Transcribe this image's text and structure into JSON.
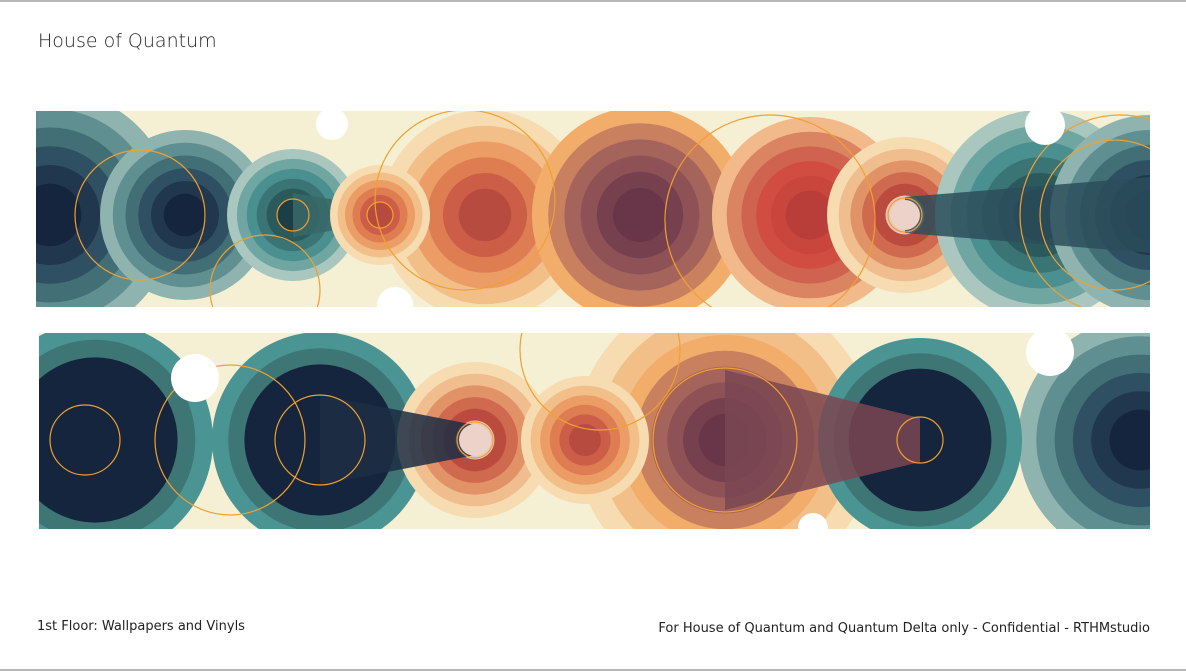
{
  "header": {
    "title": "House of Quantum"
  },
  "footer": {
    "left": "1st Floor: Wallpapers and Vinyls",
    "right": "For House of Quantum and Quantum Delta only - Confidential - RTHMstudio"
  }
}
